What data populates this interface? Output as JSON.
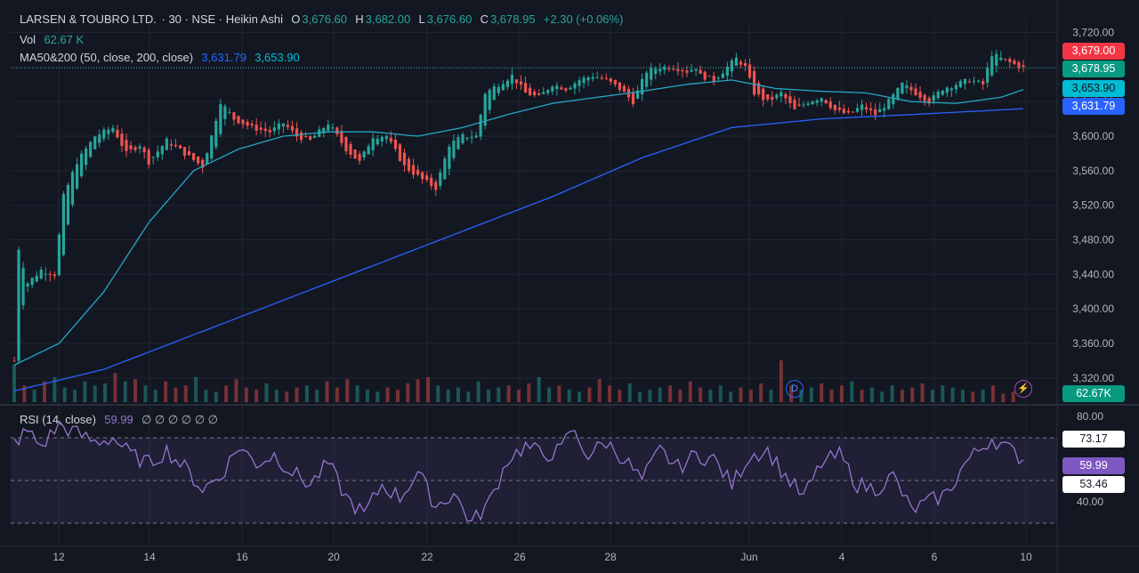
{
  "header": {
    "symbol": "LARSEN & TOUBRO LTD.",
    "interval": "· 30 · NSE · Heikin Ashi",
    "open_label": "O",
    "open": "3,676.60",
    "high_label": "H",
    "high": "3,682.00",
    "low_label": "L",
    "low": "3,676.60",
    "close_label": "C",
    "close": "3,678.95",
    "change": "+2.30 (+0.06%)"
  },
  "volume_legend": {
    "label": "Vol",
    "value": "62.67 K"
  },
  "ma_legend": {
    "label": "MA50&200 (50, close, 200, close)",
    "ma200": "3,631.79",
    "ma50": "3,653.90"
  },
  "rsi_legend": {
    "label": "RSI (14, close)",
    "value": "59.99",
    "placeholders": "∅ ∅ ∅ ∅ ∅ ∅"
  },
  "price_tags": {
    "high": "3,679.00",
    "last": "3,678.95",
    "ma50": "3,653.90",
    "ma200": "3,631.79",
    "volume": "62.67K"
  },
  "rsi_tags": {
    "upper": "73.17",
    "current": "59.99",
    "lower": "53.46"
  },
  "markers": {
    "dividend": "D",
    "flash": "⚡"
  },
  "colors": {
    "up": "#26a69a",
    "down": "#ef5350",
    "ma50": "#26a6c4",
    "ma200": "#2962ff",
    "rsi": "#9575cd",
    "last_price": "#26a69a",
    "high_tag": "#f23645"
  },
  "chart_data": [
    {
      "type": "candlestick",
      "title": "LARSEN & TOUBRO LTD. · 30 · NSE · Heikin Ashi",
      "x_tick_labels": [
        "12",
        "14",
        "16",
        "20",
        "22",
        "26",
        "28",
        "Jun",
        "4",
        "6",
        "10"
      ],
      "y_ticks": [
        3320,
        3360,
        3400,
        3440,
        3480,
        3520,
        3560,
        3600,
        3640,
        3680,
        3720
      ],
      "y_tick_labels": [
        "3,320.00",
        "3,360.00",
        "3,400.00",
        "3,440.00",
        "3,480.00",
        "3,520.00",
        "3,560.00",
        "3,600.00",
        "3,640.00",
        "3,680.00",
        "3,720.00"
      ],
      "ylim": [
        3292,
        3735
      ],
      "close_path": [
        [
          0,
          3340
        ],
        [
          1,
          3470
        ],
        [
          3,
          3430
        ],
        [
          6,
          3445
        ],
        [
          9,
          3440
        ],
        [
          11,
          3530
        ],
        [
          14,
          3570
        ],
        [
          18,
          3600
        ],
        [
          22,
          3610
        ],
        [
          25,
          3580
        ],
        [
          28,
          3590
        ],
        [
          30,
          3570
        ],
        [
          34,
          3595
        ],
        [
          38,
          3580
        ],
        [
          42,
          3565
        ],
        [
          44,
          3600
        ],
        [
          46,
          3640
        ],
        [
          49,
          3620
        ],
        [
          53,
          3610
        ],
        [
          57,
          3605
        ],
        [
          60,
          3615
        ],
        [
          63,
          3600
        ],
        [
          66,
          3595
        ],
        [
          70,
          3615
        ],
        [
          74,
          3585
        ],
        [
          77,
          3570
        ],
        [
          80,
          3600
        ],
        [
          83,
          3600
        ],
        [
          87,
          3565
        ],
        [
          91,
          3550
        ],
        [
          94,
          3540
        ],
        [
          97,
          3590
        ],
        [
          100,
          3600
        ],
        [
          103,
          3600
        ],
        [
          105,
          3650
        ],
        [
          108,
          3660
        ],
        [
          111,
          3670
        ],
        [
          114,
          3650
        ],
        [
          117,
          3645
        ],
        [
          120,
          3660
        ],
        [
          123,
          3655
        ],
        [
          126,
          3665
        ],
        [
          129,
          3670
        ],
        [
          132,
          3665
        ],
        [
          135,
          3655
        ],
        [
          138,
          3640
        ],
        [
          141,
          3675
        ],
        [
          144,
          3680
        ],
        [
          147,
          3680
        ],
        [
          150,
          3675
        ],
        [
          152,
          3680
        ],
        [
          153,
          3670
        ],
        [
          156,
          3665
        ],
        [
          159,
          3680
        ],
        [
          161,
          3690
        ],
        [
          163,
          3680
        ],
        [
          165,
          3650
        ],
        [
          168,
          3640
        ],
        [
          171,
          3650
        ],
        [
          174,
          3630
        ],
        [
          177,
          3640
        ],
        [
          180,
          3645
        ],
        [
          183,
          3630
        ],
        [
          186,
          3625
        ],
        [
          189,
          3635
        ],
        [
          192,
          3625
        ],
        [
          195,
          3640
        ],
        [
          198,
          3660
        ],
        [
          201,
          3650
        ],
        [
          204,
          3640
        ],
        [
          207,
          3655
        ],
        [
          210,
          3660
        ],
        [
          213,
          3665
        ],
        [
          216,
          3660
        ],
        [
          218,
          3695
        ],
        [
          220,
          3690
        ],
        [
          223,
          3683
        ],
        [
          225,
          3679
        ]
      ],
      "high": 3682.0,
      "low": 3676.6,
      "open": 3676.6,
      "close": 3678.95,
      "last_price": 3678.95,
      "series": [
        {
          "name": "MA50",
          "values_path": [
            [
              0,
              3335
            ],
            [
              10,
              3360
            ],
            [
              20,
              3420
            ],
            [
              30,
              3500
            ],
            [
              40,
              3560
            ],
            [
              50,
              3585
            ],
            [
              60,
              3600
            ],
            [
              70,
              3605
            ],
            [
              80,
              3605
            ],
            [
              90,
              3600
            ],
            [
              100,
              3610
            ],
            [
              110,
              3625
            ],
            [
              120,
              3638
            ],
            [
              130,
              3645
            ],
            [
              140,
              3652
            ],
            [
              150,
              3660
            ],
            [
              160,
              3665
            ],
            [
              170,
              3655
            ],
            [
              180,
              3652
            ],
            [
              190,
              3650
            ],
            [
              200,
              3640
            ],
            [
              210,
              3638
            ],
            [
              220,
              3645
            ],
            [
              225,
              3653.9
            ]
          ]
        },
        {
          "name": "MA200",
          "values_path": [
            [
              0,
              3305
            ],
            [
              20,
              3330
            ],
            [
              40,
              3370
            ],
            [
              60,
              3410
            ],
            [
              80,
              3450
            ],
            [
              100,
              3490
            ],
            [
              120,
              3530
            ],
            [
              140,
              3575
            ],
            [
              160,
              3610
            ],
            [
              180,
              3620
            ],
            [
              200,
              3625
            ],
            [
              225,
              3631.79
            ]
          ]
        }
      ]
    },
    {
      "type": "bar",
      "title": "Vol",
      "last_value": "62.67K",
      "relative_volumes": [
        0.9,
        0.4,
        0.3,
        0.5,
        0.6,
        0.35,
        0.3,
        0.5,
        0.4,
        0.45,
        0.7,
        0.5,
        0.55,
        0.4,
        0.3,
        0.5,
        0.35,
        0.4,
        0.6,
        0.3,
        0.25,
        0.4,
        0.55,
        0.35,
        0.3,
        0.45,
        0.3,
        0.25,
        0.35,
        0.4,
        0.3,
        0.5,
        0.35,
        0.55,
        0.4,
        0.3,
        0.25,
        0.35,
        0.3,
        0.45,
        0.55,
        0.6,
        0.4,
        0.3,
        0.35,
        0.25,
        0.5,
        0.3,
        0.35,
        0.4,
        0.3,
        0.45,
        0.6,
        0.35,
        0.4,
        0.3,
        0.25,
        0.35,
        0.55,
        0.4,
        0.3,
        0.45,
        0.25,
        0.3,
        0.35,
        0.4,
        0.3,
        0.5,
        0.35,
        0.3,
        0.4,
        0.25,
        0.35,
        0.3,
        0.45,
        0.3,
        1.0,
        0.4,
        0.3,
        0.35,
        0.45,
        0.3,
        0.4,
        0.5,
        0.3,
        0.35,
        0.25,
        0.4,
        0.3,
        0.35,
        0.45,
        0.3,
        0.4,
        0.35,
        0.3,
        0.25,
        0.3,
        0.4,
        0.2,
        0.25
      ]
    },
    {
      "type": "line",
      "title": "RSI (14, close)",
      "y_tick_labels": [
        "80.00",
        "40.00"
      ],
      "ylim": [
        20,
        85
      ],
      "bands": {
        "upper": 70,
        "middle": 50,
        "lower": 30
      },
      "series": [
        {
          "name": "RSI",
          "values_path": [
            [
              0,
              68
            ],
            [
              3,
              73
            ],
            [
              6,
              66
            ],
            [
              10,
              76
            ],
            [
              14,
              72
            ],
            [
              18,
              68
            ],
            [
              22,
              70
            ],
            [
              26,
              62
            ],
            [
              30,
              58
            ],
            [
              34,
              64
            ],
            [
              38,
              56
            ],
            [
              42,
              46
            ],
            [
              46,
              52
            ],
            [
              50,
              66
            ],
            [
              54,
              58
            ],
            [
              58,
              62
            ],
            [
              62,
              54
            ],
            [
              66,
              48
            ],
            [
              70,
              58
            ],
            [
              74,
              42
            ],
            [
              78,
              34
            ],
            [
              82,
              48
            ],
            [
              86,
              42
            ],
            [
              90,
              54
            ],
            [
              94,
              38
            ],
            [
              98,
              44
            ],
            [
              102,
              30
            ],
            [
              106,
              40
            ],
            [
              110,
              60
            ],
            [
              114,
              66
            ],
            [
              118,
              62
            ],
            [
              122,
              64
            ],
            [
              124,
              74
            ],
            [
              128,
              62
            ],
            [
              132,
              68
            ],
            [
              136,
              60
            ],
            [
              140,
              50
            ],
            [
              144,
              64
            ],
            [
              148,
              56
            ],
            [
              152,
              62
            ],
            [
              156,
              60
            ],
            [
              160,
              48
            ],
            [
              164,
              62
            ],
            [
              168,
              64
            ],
            [
              172,
              52
            ],
            [
              176,
              42
            ],
            [
              180,
              58
            ],
            [
              184,
              62
            ],
            [
              188,
              48
            ],
            [
              192,
              46
            ],
            [
              196,
              52
            ],
            [
              200,
              36
            ],
            [
              204,
              40
            ],
            [
              208,
              44
            ],
            [
              212,
              58
            ],
            [
              216,
              66
            ],
            [
              218,
              70
            ],
            [
              222,
              64
            ],
            [
              225,
              59.99
            ]
          ]
        }
      ],
      "last_value": 59.99,
      "marked_levels": [
        73.17,
        53.46
      ]
    }
  ]
}
